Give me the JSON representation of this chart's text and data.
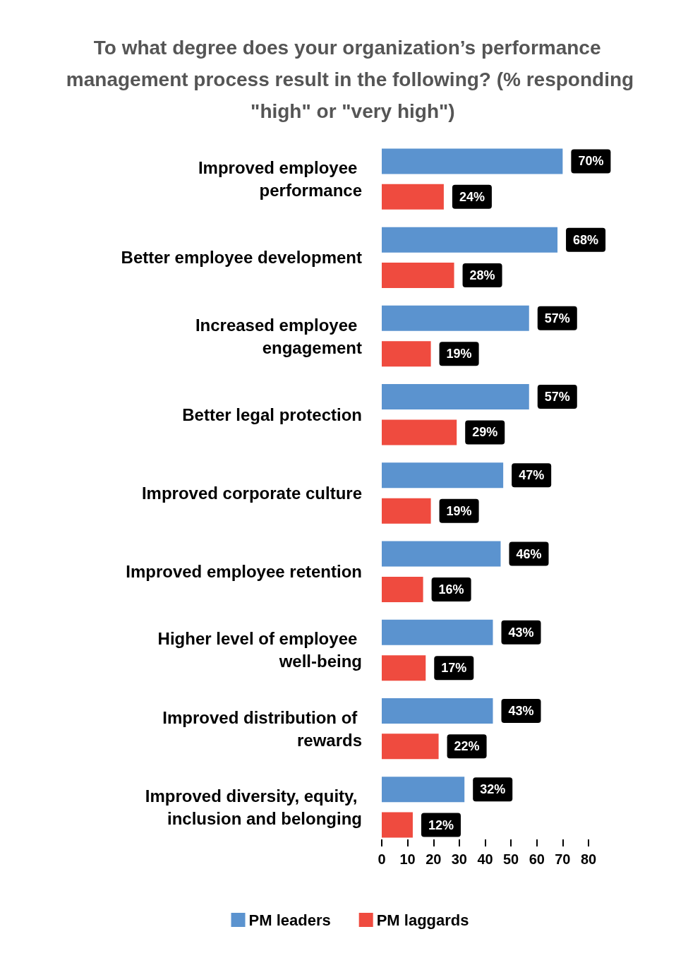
{
  "chart_data": {
    "type": "bar",
    "orientation": "horizontal",
    "title": "To what degree does your organization’s performance management process result in the following? (% responding \"high\" or \"very high\")",
    "categories": [
      "Improved employee performance",
      "Better employee development",
      "Increased employee engagement",
      "Better legal protection",
      "Improved corporate culture",
      "Improved employee retention",
      "Higher level of employee well-being",
      "Improved distribution of rewards",
      "Improved diversity, equity, inclusion and belonging"
    ],
    "series": [
      {
        "name": "PM leaders",
        "color": "#5b93cf",
        "values": [
          70,
          68,
          57,
          57,
          47,
          46,
          43,
          43,
          32
        ],
        "value_labels": [
          "70%",
          "68%",
          "57%",
          "57%",
          "47%",
          "46%",
          "43%",
          "43%",
          "32%"
        ]
      },
      {
        "name": "PM laggards",
        "color": "#ef4b3f",
        "values": [
          24,
          28,
          19,
          29,
          19,
          16,
          17,
          22,
          12
        ],
        "value_labels": [
          "24%",
          "28%",
          "19%",
          "29%",
          "19%",
          "16%",
          "17%",
          "22%",
          "12%"
        ]
      }
    ],
    "xlim": [
      0,
      80
    ],
    "xticks": [
      0,
      10,
      20,
      30,
      40,
      50,
      60,
      70,
      80
    ],
    "grid": false,
    "legend": "bottom"
  }
}
